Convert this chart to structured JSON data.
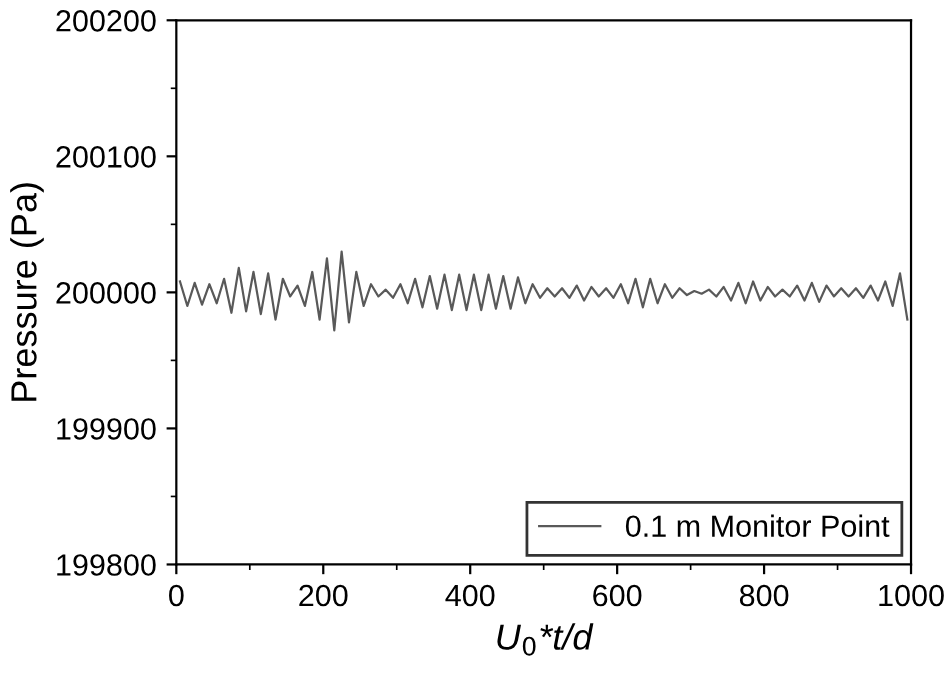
{
  "chart_data": {
    "type": "line",
    "xlabel": "U$_{0}$*t/d",
    "ylabel": "Pressure (Pa)",
    "xlim": [
      0,
      1000
    ],
    "xticks": [
      0,
      200,
      400,
      600,
      800,
      1000
    ],
    "ylim": [
      199800,
      200200
    ],
    "yticks": [
      199800,
      199900,
      200000,
      200100,
      200200
    ],
    "grid": false,
    "legend": "bottom right",
    "line_style": "solid",
    "marker": "none",
    "series": [
      {
        "name": "0.1 m Monitor Point",
        "color": "#595959",
        "x": [
          5,
          15,
          25,
          35,
          45,
          55,
          65,
          75,
          85,
          95,
          105,
          115,
          125,
          135,
          145,
          155,
          165,
          175,
          185,
          195,
          205,
          215,
          225,
          235,
          245,
          255,
          265,
          275,
          285,
          295,
          305,
          315,
          325,
          335,
          345,
          355,
          365,
          375,
          385,
          395,
          405,
          415,
          425,
          435,
          445,
          455,
          465,
          475,
          485,
          495,
          505,
          515,
          525,
          535,
          545,
          555,
          565,
          575,
          585,
          595,
          605,
          615,
          625,
          635,
          645,
          655,
          665,
          675,
          685,
          695,
          705,
          715,
          725,
          735,
          745,
          755,
          765,
          775,
          785,
          795,
          805,
          815,
          825,
          835,
          845,
          855,
          865,
          875,
          885,
          895,
          905,
          915,
          925,
          935,
          945,
          955,
          965,
          975,
          985,
          995
        ],
        "values": [
          200008,
          199990,
          200007,
          199991,
          200006,
          199992,
          200010,
          199985,
          200018,
          199986,
          200015,
          199984,
          200014,
          199980,
          200010,
          199997,
          200005,
          199990,
          200015,
          199980,
          200025,
          199972,
          200030,
          199978,
          200015,
          199990,
          200006,
          199997,
          200002,
          199996,
          200006,
          199992,
          200010,
          199989,
          200012,
          199988,
          200013,
          199987,
          200013,
          199987,
          200013,
          199987,
          200013,
          199988,
          200012,
          199988,
          200011,
          199992,
          200006,
          199996,
          200003,
          199997,
          200003,
          199996,
          200005,
          199994,
          200004,
          199997,
          200003,
          199996,
          200006,
          199992,
          200010,
          199989,
          200010,
          199992,
          200006,
          199996,
          200003,
          199998,
          200001,
          199999,
          200002,
          199997,
          200004,
          199994,
          200007,
          199992,
          200008,
          199994,
          200004,
          199997,
          200002,
          199997,
          200005,
          199994,
          200007,
          199993,
          200005,
          199997,
          200003,
          199997,
          200003,
          199996,
          200005,
          199994,
          200008,
          199990,
          200014,
          199980
        ]
      }
    ]
  }
}
